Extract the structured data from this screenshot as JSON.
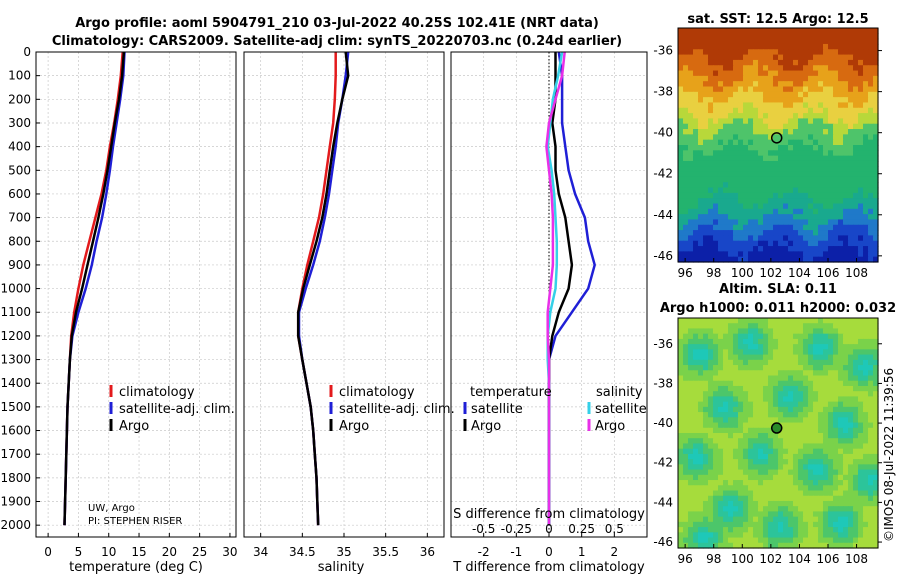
{
  "header": {
    "title_line1": "Argo profile: aoml 5904791_210 03-Jul-2022 40.25S 102.41E (NRT data)",
    "title_line2": "Climatology: CARS2009. Satellite-adj clim: synTS_20220703.nc (0.24d earlier)"
  },
  "credit": "©IMOS 08-Jul-2022 11:39:56",
  "colors": {
    "climatology": "#e31a1c",
    "satellite_adj_clim": "#1f1fd6",
    "argo": "#000000",
    "s_satellite": "#35d0e8",
    "s_argo": "#e830e8",
    "grid": "#c9c9c9"
  },
  "chart_data": [
    {
      "type": "line",
      "xlabel": "temperature (deg C)",
      "ylabel": "",
      "xlim": [
        -2,
        31
      ],
      "xticks": [
        "0",
        "5",
        "10",
        "15",
        "20",
        "25",
        "30"
      ],
      "ylim": [
        0,
        2050
      ],
      "yticks": [
        "0",
        "100",
        "200",
        "300",
        "400",
        "500",
        "600",
        "700",
        "800",
        "900",
        "1000",
        "1100",
        "1200",
        "1300",
        "1400",
        "1500",
        "1600",
        "1700",
        "1800",
        "1900",
        "2000"
      ],
      "y_inverted": true,
      "grid": true,
      "legend_position": "bottom-right",
      "note_lines": [
        "UW, Argo",
        "PI: STEPHEN RISER"
      ],
      "series": [
        {
          "name": "climatology",
          "y": [
            0,
            100,
            200,
            300,
            400,
            500,
            600,
            700,
            800,
            900,
            1000,
            1100,
            1200,
            1300,
            1400,
            1500,
            1600,
            1700,
            1800,
            1900,
            2000
          ],
          "x": [
            12.3,
            12.0,
            11.5,
            10.9,
            10.2,
            9.6,
            8.8,
            7.8,
            6.8,
            5.8,
            5.0,
            4.3,
            3.8,
            3.6,
            3.4,
            3.2,
            3.1,
            3.0,
            2.9,
            2.8,
            2.7
          ]
        },
        {
          "name": "satellite-adj. clim.",
          "y": [
            0,
            100,
            200,
            300,
            400,
            500,
            600,
            700,
            800,
            900,
            1000,
            1100,
            1200,
            1300,
            1400,
            1500,
            1600,
            1700,
            1800,
            1900,
            2000
          ],
          "x": [
            12.6,
            12.4,
            11.9,
            11.3,
            10.7,
            10.2,
            9.6,
            8.9,
            8.0,
            7.2,
            6.2,
            5.0,
            4.0,
            3.6,
            3.4,
            3.2,
            3.1,
            3.0,
            2.9,
            2.8,
            2.7
          ]
        },
        {
          "name": "Argo",
          "y": [
            0,
            100,
            200,
            300,
            400,
            500,
            600,
            700,
            800,
            900,
            1000,
            1100,
            1200,
            1300,
            1400,
            1500,
            1600,
            1700,
            1800,
            1900,
            2000
          ],
          "x": [
            12.5,
            12.2,
            11.7,
            11.0,
            10.4,
            9.8,
            9.1,
            8.3,
            7.4,
            6.5,
            5.6,
            4.6,
            3.9,
            3.6,
            3.4,
            3.2,
            3.1,
            3.0,
            2.9,
            2.8,
            2.7
          ]
        }
      ]
    },
    {
      "type": "line",
      "xlabel": "salinity",
      "ylabel": "",
      "xlim": [
        33.8,
        36.2
      ],
      "xticks": [
        "34",
        "34.5",
        "35",
        "35.5",
        "36"
      ],
      "ylim": [
        0,
        2050
      ],
      "y_inverted": true,
      "grid": true,
      "legend_position": "bottom-right",
      "series": [
        {
          "name": "climatology",
          "y": [
            0,
            100,
            200,
            300,
            400,
            500,
            600,
            700,
            800,
            900,
            1000,
            1100,
            1200,
            1300,
            1400,
            1500,
            1600,
            1700,
            1800,
            1900,
            2000
          ],
          "x": [
            34.9,
            34.9,
            34.89,
            34.87,
            34.83,
            34.79,
            34.75,
            34.7,
            34.63,
            34.56,
            34.5,
            34.45,
            34.45,
            34.5,
            34.55,
            34.6,
            34.63,
            34.65,
            34.67,
            34.68,
            34.69
          ]
        },
        {
          "name": "satellite-adj. clim.",
          "y": [
            0,
            100,
            200,
            300,
            400,
            500,
            600,
            700,
            800,
            900,
            1000,
            1100,
            1200,
            1300,
            1400,
            1500,
            1600,
            1700,
            1800,
            1900,
            2000
          ],
          "x": [
            35.05,
            35.02,
            34.98,
            34.93,
            34.9,
            34.86,
            34.82,
            34.77,
            34.71,
            34.63,
            34.54,
            34.46,
            34.46,
            34.5,
            34.55,
            34.6,
            34.63,
            34.65,
            34.67,
            34.68,
            34.69
          ]
        },
        {
          "name": "Argo",
          "y": [
            0,
            100,
            200,
            300,
            400,
            500,
            600,
            700,
            800,
            900,
            1000,
            1100,
            1200,
            1300,
            1400,
            1500,
            1600,
            1700,
            1800,
            1900,
            2000
          ],
          "x": [
            35.02,
            35.05,
            34.98,
            34.92,
            34.87,
            34.83,
            34.79,
            34.74,
            34.67,
            34.59,
            34.51,
            34.45,
            34.45,
            34.5,
            34.55,
            34.6,
            34.63,
            34.65,
            34.67,
            34.68,
            34.69
          ]
        }
      ]
    },
    {
      "type": "line",
      "xlabel": "T difference from climatology",
      "x2label": "S difference from climatology",
      "xlim": [
        -3,
        3
      ],
      "xticks": [
        "-2",
        "-1",
        "0",
        "1",
        "2"
      ],
      "x2lim": [
        -0.75,
        0.75
      ],
      "x2ticks": [
        "-0.5",
        "-0.25",
        "0",
        "0.25",
        "0.5"
      ],
      "ylim": [
        0,
        2050
      ],
      "y_inverted": true,
      "grid": true,
      "legend_left_title": "temperature",
      "legend_right_title": "salinity",
      "series": [
        {
          "name": "satellite",
          "group": "temperature",
          "y": [
            0,
            100,
            200,
            300,
            400,
            500,
            600,
            700,
            800,
            900,
            1000,
            1100,
            1200,
            1300,
            1400,
            1500,
            1600,
            1700,
            1800,
            1900,
            2000
          ],
          "x": [
            0.3,
            0.4,
            0.4,
            0.4,
            0.5,
            0.6,
            0.8,
            1.1,
            1.2,
            1.4,
            1.2,
            0.7,
            0.2,
            0.0,
            0.0,
            0.0,
            0.0,
            0.0,
            0.0,
            0.0,
            0.0
          ]
        },
        {
          "name": "Argo",
          "group": "temperature",
          "y": [
            0,
            100,
            200,
            300,
            400,
            500,
            600,
            700,
            800,
            900,
            1000,
            1100,
            1200,
            1300,
            1400,
            1500,
            1600,
            1700,
            1800,
            1900,
            2000
          ],
          "x": [
            0.2,
            0.2,
            0.2,
            0.1,
            0.2,
            0.2,
            0.3,
            0.5,
            0.6,
            0.7,
            0.6,
            0.3,
            0.1,
            0.0,
            0.0,
            0.0,
            0.0,
            0.0,
            0.0,
            0.0,
            0.0
          ]
        },
        {
          "name": "satellite",
          "group": "salinity",
          "x2": [
            0.1,
            0.07,
            0.03,
            0.01,
            -0.01,
            0.02,
            0.04,
            0.05,
            0.06,
            0.06,
            0.05,
            0.01,
            -0.01,
            -0.01,
            0.0,
            0.0,
            0.0,
            0.0,
            0.0,
            0.0,
            0.0
          ],
          "y": [
            0,
            100,
            200,
            300,
            400,
            500,
            600,
            700,
            800,
            900,
            1000,
            1100,
            1200,
            1300,
            1400,
            1500,
            1600,
            1700,
            1800,
            1900,
            2000
          ]
        },
        {
          "name": "Argo",
          "group": "salinity",
          "x2": [
            0.12,
            0.1,
            0.05,
            0.0,
            -0.02,
            0.0,
            0.02,
            0.03,
            0.03,
            0.03,
            0.01,
            -0.01,
            -0.01,
            0.0,
            0.0,
            0.0,
            0.0,
            0.0,
            0.0,
            0.0,
            0.0
          ],
          "y": [
            0,
            100,
            200,
            300,
            400,
            500,
            600,
            700,
            800,
            900,
            1000,
            1100,
            1200,
            1300,
            1400,
            1500,
            1600,
            1700,
            1800,
            1900,
            2000
          ]
        }
      ]
    },
    {
      "type": "heatmap",
      "title": "sat. SST: 12.5 Argo: 12.5",
      "xlim": [
        95.5,
        109.5
      ],
      "ylim": [
        -46.3,
        -34.9
      ],
      "xticks": [
        "96",
        "98",
        "100",
        "102",
        "104",
        "106",
        "108"
      ],
      "yticks": [
        "-36",
        "-38",
        "-40",
        "-42",
        "-44",
        "-46"
      ],
      "marker": {
        "lon": 102.41,
        "lat": -40.25
      }
    },
    {
      "type": "heatmap",
      "title_line1": "Altim. SLA: 0.11",
      "title_line2": "Argo h1000: 0.011 h2000: 0.032",
      "xlim": [
        95.5,
        109.5
      ],
      "ylim": [
        -46.3,
        -34.7
      ],
      "xticks": [
        "96",
        "98",
        "100",
        "102",
        "104",
        "106",
        "108"
      ],
      "yticks": [
        "-36",
        "-38",
        "-40",
        "-42",
        "-44",
        "-46"
      ],
      "marker": {
        "lon": 102.41,
        "lat": -40.25
      }
    }
  ]
}
